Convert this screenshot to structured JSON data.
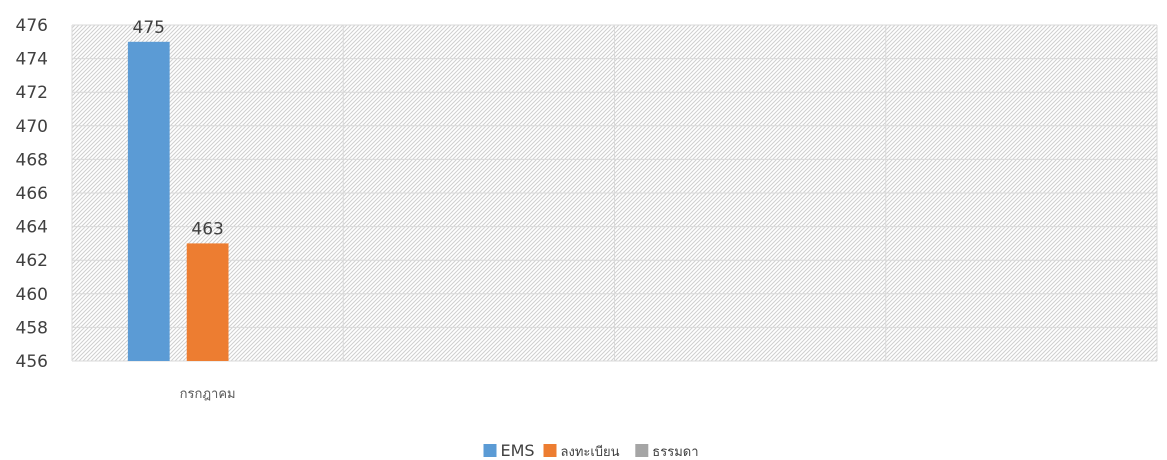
{
  "chart_data": {
    "type": "bar",
    "categories": [
      "กรกฎาคม",
      "",
      "",
      ""
    ],
    "series": [
      {
        "name": "EMS",
        "values": [
          475,
          null,
          null,
          null
        ],
        "color": "#5B9BD5"
      },
      {
        "name": "ลงทะเบียน",
        "values": [
          463,
          null,
          null,
          null
        ],
        "color": "#ED7D31"
      },
      {
        "name": "ธรรมดา",
        "values": [
          null,
          null,
          null,
          null
        ],
        "color": "#A5A5A5"
      }
    ],
    "ylim": [
      456,
      476
    ],
    "yticks": [
      456,
      458,
      460,
      462,
      464,
      466,
      468,
      470,
      472,
      474,
      476
    ],
    "data_labels": true,
    "grid": true,
    "plot_background": "hatched",
    "legend_position": "bottom"
  }
}
